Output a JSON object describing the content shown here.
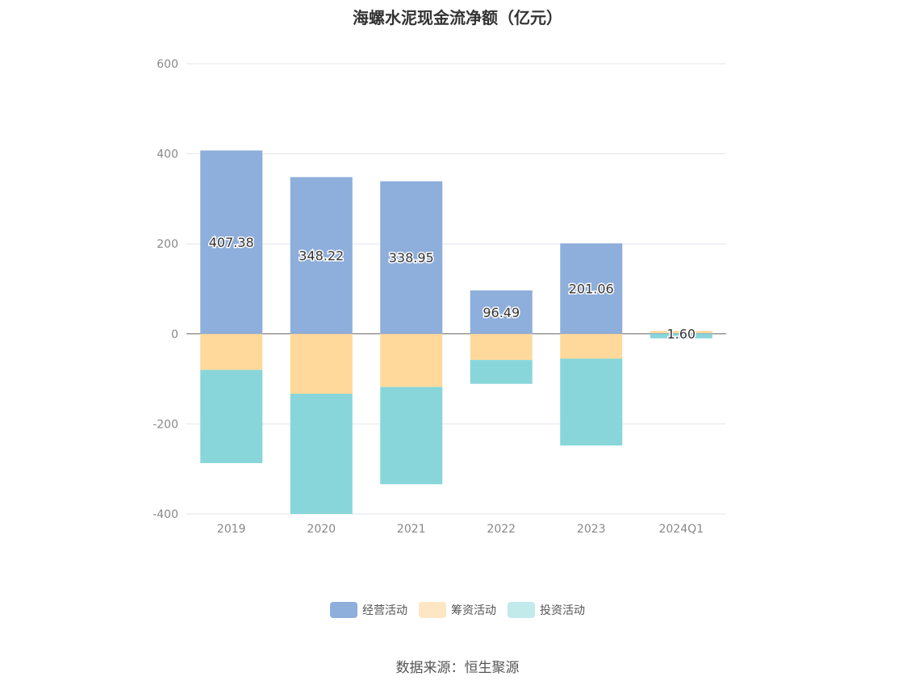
{
  "chart_data": {
    "type": "bar",
    "stacked": true,
    "title": "海螺水泥现金流净额（亿元）",
    "categories": [
      "2019",
      "2020",
      "2021",
      "2022",
      "2023",
      "2024Q1"
    ],
    "series": [
      {
        "name": "经营活动",
        "color": "#8eaedb",
        "values": [
          407.38,
          348.22,
          338.95,
          96.49,
          201.06,
          1.6
        ]
      },
      {
        "name": "筹资活动",
        "color": "#fed99b",
        "values": [
          -80,
          -133,
          -118,
          -58,
          -55,
          5
        ]
      },
      {
        "name": "投资活动",
        "color": "#88d6d9",
        "values": [
          -207,
          -268,
          -216,
          -53,
          -193,
          -10
        ]
      }
    ],
    "data_labels": [
      "407.38",
      "348.22",
      "338.95",
      "96.49",
      "201.06",
      "1.60"
    ],
    "ylim": [
      -400,
      600
    ],
    "yticks": [
      600,
      400,
      200,
      0,
      -200,
      -400
    ],
    "grid": true,
    "legend": "bottom-center"
  },
  "legend_colors": [
    "#8eaedb",
    "#fde6c3",
    "#c2eaeb"
  ],
  "source": "数据来源：恒生聚源"
}
